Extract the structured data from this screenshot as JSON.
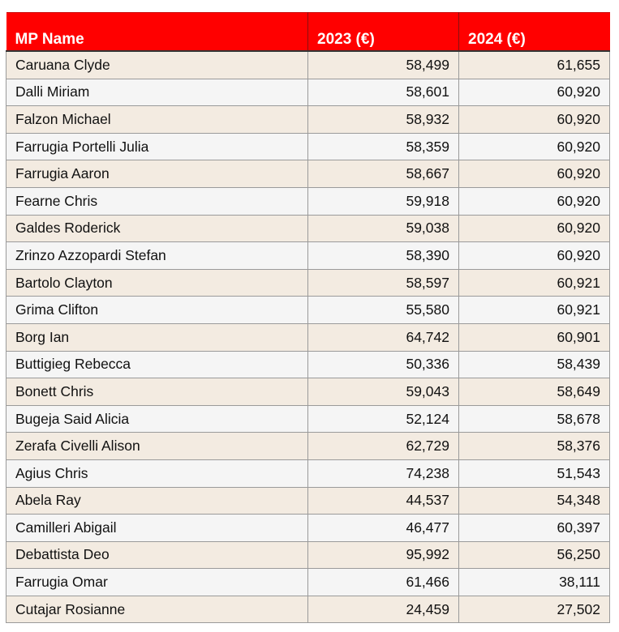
{
  "table": {
    "headers": [
      "MP Name",
      "2023 (€)",
      "2024 (€)"
    ],
    "rows": [
      [
        "Caruana Clyde",
        "58,499",
        "61,655"
      ],
      [
        "Dalli Miriam",
        "58,601",
        "60,920"
      ],
      [
        "Falzon Michael",
        "58,932",
        "60,920"
      ],
      [
        "Farrugia Portelli Julia",
        "58,359",
        "60,920"
      ],
      [
        "Farrugia Aaron",
        "58,667",
        "60,920"
      ],
      [
        "Fearne Chris",
        "59,918",
        "60,920"
      ],
      [
        "Galdes Roderick",
        "59,038",
        "60,920"
      ],
      [
        "Zrinzo Azzopardi Stefan",
        "58,390",
        "60,920"
      ],
      [
        "Bartolo Clayton",
        "58,597",
        "60,921"
      ],
      [
        "Grima Clifton",
        "55,580",
        "60,921"
      ],
      [
        "Borg Ian",
        "64,742",
        "60,901"
      ],
      [
        "Buttigieg Rebecca",
        "50,336",
        "58,439"
      ],
      [
        "Bonett Chris",
        "59,043",
        "58,649"
      ],
      [
        "Bugeja Said Alicia",
        "52,124",
        "58,678"
      ],
      [
        "Zerafa Civelli Alison",
        "62,729",
        "58,376"
      ],
      [
        "Agius Chris",
        "74,238",
        "51,543"
      ],
      [
        "Abela Ray",
        "44,537",
        "54,348"
      ],
      [
        "Camilleri Abigail",
        "46,477",
        "60,397"
      ],
      [
        "Debattista Deo",
        "95,992",
        "56,250"
      ],
      [
        "Farrugia Omar",
        "61,466",
        "38,111"
      ],
      [
        "Cutajar Rosianne",
        "24,459",
        "27,502"
      ]
    ]
  },
  "colors": {
    "header_bg": "#ff0000",
    "header_text": "#ffffff",
    "row_odd": "#f3ebe1",
    "row_even": "#f5f5f5"
  }
}
